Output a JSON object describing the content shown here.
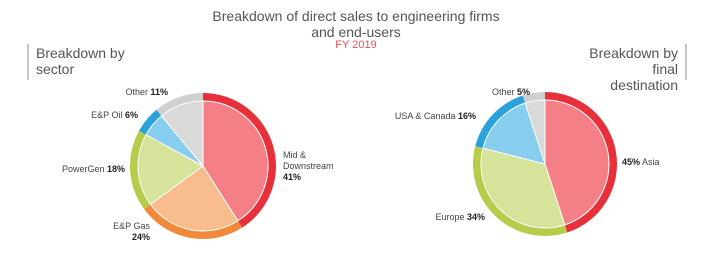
{
  "header": {
    "title": "Breakdown of direct sales to engineering firms and end-users",
    "subtitle": "FY 2019"
  },
  "chart_data": [
    {
      "type": "pie",
      "title": "Breakdown by sector",
      "categories": [
        "Mid & Downstream",
        "E&P Gas",
        "PowerGen",
        "E&P Oil",
        "Other"
      ],
      "values": [
        41,
        24,
        18,
        6,
        11
      ],
      "value_labels": [
        "41%",
        "24%",
        "18%",
        "6%",
        "11%"
      ],
      "colors": [
        "#e8303a",
        "#f08a3a",
        "#b7cc4a",
        "#2aa3dc",
        "#d0d0d0"
      ],
      "light_colors": [
        "#f57f86",
        "#f9bc8d",
        "#d6e39a",
        "#86cdee",
        "#d9d9d9"
      ]
    },
    {
      "type": "pie",
      "title": "Breakdown by final destination",
      "categories": [
        "Asia",
        "Europe",
        "USA & Canada",
        "Other"
      ],
      "values": [
        45,
        34,
        16,
        5
      ],
      "value_labels": [
        "45%",
        "34%",
        "16%",
        "5%"
      ],
      "colors": [
        "#e8303a",
        "#b7cc4a",
        "#2aa3dc",
        "#d0d0d0"
      ],
      "light_colors": [
        "#f57f86",
        "#d6e39a",
        "#86cdee",
        "#d9d9d9"
      ]
    }
  ]
}
